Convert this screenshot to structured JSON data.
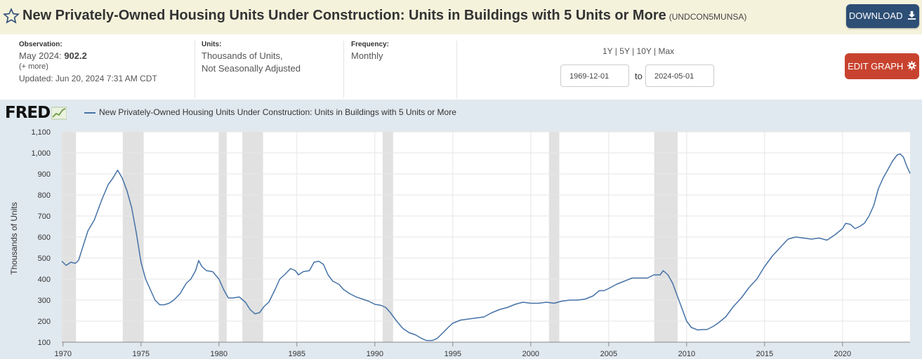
{
  "header": {
    "title": "New Privately-Owned Housing Units Under Construction: Units in Buildings with 5 Units or More",
    "series_id": "(UNDCON5MUNSA)",
    "download_label": "DOWNLOAD",
    "edit_label": "EDIT GRAPH"
  },
  "meta": {
    "observation_label": "Observation:",
    "observation_date": "May 2024:",
    "observation_value": "902.2",
    "more_link": "(+ more)",
    "updated": "Updated: Jun 20, 2024 7:31 AM CDT",
    "units_label": "Units:",
    "units_line1": "Thousands of Units,",
    "units_line2": "Not Seasonally Adjusted",
    "frequency_label": "Frequency:",
    "frequency_value": "Monthly"
  },
  "range": {
    "links": [
      "1Y",
      "5Y",
      "10Y",
      "Max"
    ],
    "start": "1969-12-01",
    "to_label": "to",
    "end": "2024-05-01"
  },
  "colors": {
    "line": "#4572a7",
    "recession": "#e1e1e1",
    "plot_bg": "#ffffff",
    "chart_bg": "#e1e9f0"
  },
  "chart_data": {
    "type": "line",
    "logo": "FRED",
    "legend": "New Privately-Owned Housing Units Under Construction: Units in Buildings with 5 Units or More",
    "ylabel": "Thousands of Units",
    "ylim": [
      100,
      1100
    ],
    "yticks": [
      100,
      200,
      300,
      400,
      500,
      600,
      700,
      800,
      900,
      1000,
      1100
    ],
    "ytick_labels": [
      "100",
      "200",
      "300",
      "400",
      "500",
      "600",
      "700",
      "800",
      "900",
      "1,000",
      "1,100"
    ],
    "xlim": [
      1969.92,
      2024.33
    ],
    "xticks": [
      1970,
      1975,
      1980,
      1985,
      1990,
      1995,
      2000,
      2005,
      2010,
      2015,
      2020
    ],
    "recessions": [
      [
        1969.92,
        1970.83
      ],
      [
        1973.83,
        1975.17
      ],
      [
        1980.0,
        1980.5
      ],
      [
        1981.5,
        1982.83
      ],
      [
        1990.5,
        1991.17
      ],
      [
        2001.17,
        2001.83
      ],
      [
        2007.92,
        2009.42
      ]
    ],
    "series": [
      {
        "name": "New Privately-Owned Housing Units Under Construction: Units in Buildings with 5 Units or More",
        "points": [
          [
            1969.92,
            485
          ],
          [
            1970.2,
            465
          ],
          [
            1970.5,
            480
          ],
          [
            1970.8,
            475
          ],
          [
            1971.0,
            490
          ],
          [
            1971.3,
            560
          ],
          [
            1971.6,
            630
          ],
          [
            1972.0,
            680
          ],
          [
            1972.5,
            780
          ],
          [
            1972.9,
            850
          ],
          [
            1973.2,
            880
          ],
          [
            1973.5,
            918
          ],
          [
            1973.8,
            880
          ],
          [
            1974.1,
            820
          ],
          [
            1974.4,
            740
          ],
          [
            1974.7,
            620
          ],
          [
            1975.0,
            480
          ],
          [
            1975.3,
            400
          ],
          [
            1975.6,
            350
          ],
          [
            1975.9,
            300
          ],
          [
            1976.2,
            278
          ],
          [
            1976.5,
            278
          ],
          [
            1976.8,
            285
          ],
          [
            1977.1,
            300
          ],
          [
            1977.5,
            330
          ],
          [
            1977.9,
            380
          ],
          [
            1978.2,
            400
          ],
          [
            1978.5,
            440
          ],
          [
            1978.7,
            488
          ],
          [
            1978.9,
            460
          ],
          [
            1979.2,
            440
          ],
          [
            1979.6,
            435
          ],
          [
            1980.0,
            400
          ],
          [
            1980.3,
            350
          ],
          [
            1980.6,
            310
          ],
          [
            1980.9,
            310
          ],
          [
            1981.3,
            315
          ],
          [
            1981.7,
            290
          ],
          [
            1982.0,
            255
          ],
          [
            1982.3,
            235
          ],
          [
            1982.6,
            240
          ],
          [
            1982.9,
            270
          ],
          [
            1983.2,
            290
          ],
          [
            1983.6,
            350
          ],
          [
            1983.9,
            400
          ],
          [
            1984.2,
            420
          ],
          [
            1984.6,
            450
          ],
          [
            1984.9,
            440
          ],
          [
            1985.1,
            420
          ],
          [
            1985.4,
            435
          ],
          [
            1985.8,
            440
          ],
          [
            1986.1,
            480
          ],
          [
            1986.4,
            485
          ],
          [
            1986.7,
            470
          ],
          [
            1987.0,
            420
          ],
          [
            1987.3,
            390
          ],
          [
            1987.7,
            375
          ],
          [
            1988.0,
            350
          ],
          [
            1988.4,
            330
          ],
          [
            1988.8,
            315
          ],
          [
            1989.2,
            305
          ],
          [
            1989.6,
            295
          ],
          [
            1990.0,
            280
          ],
          [
            1990.4,
            275
          ],
          [
            1990.7,
            265
          ],
          [
            1991.0,
            240
          ],
          [
            1991.4,
            200
          ],
          [
            1991.8,
            165
          ],
          [
            1992.2,
            145
          ],
          [
            1992.6,
            135
          ],
          [
            1993.0,
            118
          ],
          [
            1993.3,
            108
          ],
          [
            1993.7,
            108
          ],
          [
            1994.0,
            118
          ],
          [
            1994.3,
            140
          ],
          [
            1994.7,
            170
          ],
          [
            1995.0,
            190
          ],
          [
            1995.5,
            205
          ],
          [
            1996.0,
            210
          ],
          [
            1996.5,
            215
          ],
          [
            1997.0,
            220
          ],
          [
            1997.5,
            240
          ],
          [
            1998.0,
            255
          ],
          [
            1998.5,
            265
          ],
          [
            1999.0,
            280
          ],
          [
            1999.5,
            290
          ],
          [
            2000.0,
            285
          ],
          [
            2000.5,
            285
          ],
          [
            2001.0,
            290
          ],
          [
            2001.5,
            285
          ],
          [
            2002.0,
            295
          ],
          [
            2002.5,
            300
          ],
          [
            2003.0,
            300
          ],
          [
            2003.5,
            305
          ],
          [
            2004.0,
            320
          ],
          [
            2004.4,
            345
          ],
          [
            2004.7,
            345
          ],
          [
            2005.0,
            355
          ],
          [
            2005.5,
            375
          ],
          [
            2006.0,
            390
          ],
          [
            2006.5,
            405
          ],
          [
            2007.0,
            405
          ],
          [
            2007.5,
            405
          ],
          [
            2007.9,
            420
          ],
          [
            2008.3,
            420
          ],
          [
            2008.5,
            440
          ],
          [
            2008.8,
            420
          ],
          [
            2009.1,
            380
          ],
          [
            2009.4,
            320
          ],
          [
            2009.7,
            260
          ],
          [
            2010.0,
            200
          ],
          [
            2010.3,
            170
          ],
          [
            2010.7,
            158
          ],
          [
            2011.0,
            160
          ],
          [
            2011.3,
            160
          ],
          [
            2011.7,
            175
          ],
          [
            2012.0,
            190
          ],
          [
            2012.5,
            220
          ],
          [
            2013.0,
            270
          ],
          [
            2013.5,
            310
          ],
          [
            2014.0,
            360
          ],
          [
            2014.5,
            400
          ],
          [
            2015.0,
            460
          ],
          [
            2015.5,
            510
          ],
          [
            2016.0,
            550
          ],
          [
            2016.5,
            590
          ],
          [
            2017.0,
            600
          ],
          [
            2017.5,
            595
          ],
          [
            2018.0,
            590
          ],
          [
            2018.5,
            595
          ],
          [
            2019.0,
            585
          ],
          [
            2019.5,
            610
          ],
          [
            2020.0,
            640
          ],
          [
            2020.2,
            665
          ],
          [
            2020.5,
            660
          ],
          [
            2020.8,
            640
          ],
          [
            2021.1,
            650
          ],
          [
            2021.4,
            665
          ],
          [
            2021.7,
            700
          ],
          [
            2022.0,
            750
          ],
          [
            2022.3,
            830
          ],
          [
            2022.6,
            880
          ],
          [
            2022.9,
            920
          ],
          [
            2023.2,
            960
          ],
          [
            2023.5,
            990
          ],
          [
            2023.7,
            995
          ],
          [
            2023.9,
            980
          ],
          [
            2024.1,
            940
          ],
          [
            2024.33,
            902.2
          ]
        ]
      }
    ]
  }
}
